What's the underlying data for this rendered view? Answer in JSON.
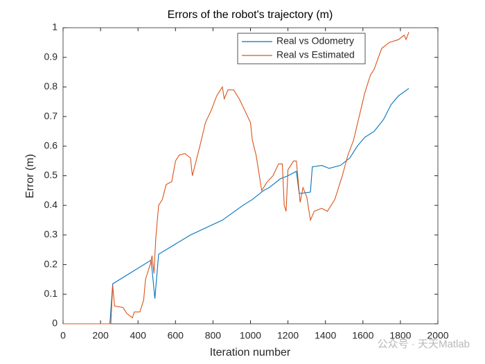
{
  "chart_data": {
    "type": "line",
    "title": "Errors of the robot's trajectory (m)",
    "xlabel": "Iteration number",
    "ylabel": "Error (m)",
    "watermark": "公众号 · 天天Matlab",
    "xlim": [
      0,
      2000
    ],
    "xticks": [
      0,
      200,
      400,
      600,
      800,
      1000,
      1200,
      1400,
      1600,
      1800,
      2000
    ],
    "ylim": [
      0,
      1
    ],
    "yticks": [
      0,
      0.1,
      0.2,
      0.3,
      0.4,
      0.5,
      0.6,
      0.7,
      0.8,
      0.9,
      1
    ],
    "legend": "northeast",
    "series": [
      {
        "name": "Real vs Odometry",
        "color": "#0072BD",
        "x": [
          0,
          250,
          265,
          470,
          490,
          510,
          680,
          850,
          960,
          1010,
          1070,
          1100,
          1160,
          1200,
          1245,
          1260,
          1320,
          1330,
          1380,
          1420,
          1480,
          1530,
          1570,
          1610,
          1660,
          1710,
          1750,
          1790,
          1845
        ],
        "values": [
          0,
          0,
          0.135,
          0.215,
          0.085,
          0.235,
          0.3,
          0.35,
          0.4,
          0.42,
          0.45,
          0.46,
          0.49,
          0.5,
          0.515,
          0.44,
          0.445,
          0.53,
          0.535,
          0.525,
          0.535,
          0.56,
          0.6,
          0.63,
          0.65,
          0.69,
          0.74,
          0.77,
          0.795
        ]
      },
      {
        "name": "Real vs Estimated",
        "color": "#D95319",
        "x": [
          0,
          255,
          265,
          275,
          320,
          340,
          370,
          380,
          410,
          430,
          440,
          455,
          465,
          475,
          485,
          495,
          510,
          530,
          550,
          580,
          600,
          620,
          650,
          680,
          690,
          710,
          730,
          760,
          790,
          820,
          850,
          860,
          880,
          910,
          940,
          970,
          1000,
          1010,
          1030,
          1060,
          1090,
          1120,
          1150,
          1170,
          1180,
          1190,
          1200,
          1230,
          1245,
          1265,
          1280,
          1300,
          1320,
          1340,
          1380,
          1410,
          1450,
          1490,
          1520,
          1550,
          1580,
          1610,
          1640,
          1660,
          1700,
          1740,
          1790,
          1820,
          1830,
          1845
        ],
        "values": [
          0,
          0,
          0.13,
          0.06,
          0.055,
          0.035,
          0.02,
          0.04,
          0.04,
          0.08,
          0.15,
          0.18,
          0.2,
          0.23,
          0.17,
          0.29,
          0.4,
          0.42,
          0.47,
          0.48,
          0.55,
          0.57,
          0.575,
          0.56,
          0.5,
          0.55,
          0.6,
          0.68,
          0.72,
          0.77,
          0.8,
          0.76,
          0.79,
          0.79,
          0.76,
          0.72,
          0.68,
          0.62,
          0.57,
          0.45,
          0.48,
          0.5,
          0.54,
          0.54,
          0.4,
          0.38,
          0.52,
          0.55,
          0.55,
          0.41,
          0.46,
          0.43,
          0.35,
          0.38,
          0.39,
          0.38,
          0.42,
          0.5,
          0.57,
          0.62,
          0.7,
          0.78,
          0.84,
          0.86,
          0.93,
          0.95,
          0.96,
          0.975,
          0.96,
          0.985
        ]
      }
    ]
  }
}
